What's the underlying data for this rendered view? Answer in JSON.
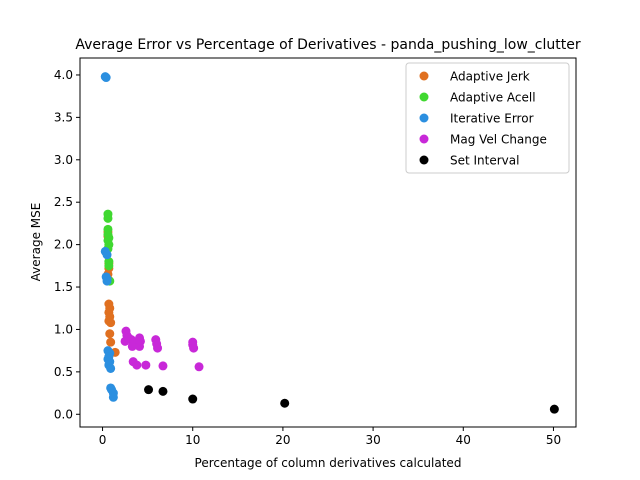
{
  "chart_data": {
    "type": "scatter",
    "title": "Average Error vs Percentage of Derivatives - panda_pushing_low_clutter",
    "xlabel": "Percentage of column derivatives calculated",
    "ylabel": "Average MSE",
    "xlim": [
      -2.5,
      52.5
    ],
    "ylim": [
      -0.15,
      4.2
    ],
    "xticks": [
      0,
      10,
      20,
      30,
      40,
      50
    ],
    "xtick_labels": [
      "0",
      "10",
      "20",
      "30",
      "40",
      "50"
    ],
    "yticks": [
      0.0,
      0.5,
      1.0,
      1.5,
      2.0,
      2.5,
      3.0,
      3.5,
      4.0
    ],
    "ytick_labels": [
      "0.0",
      "0.5",
      "1.0",
      "1.5",
      "2.0",
      "2.5",
      "3.0",
      "3.5",
      "4.0"
    ],
    "grid": false,
    "legend_position": "top-right",
    "series": [
      {
        "name": "Adaptive Jerk",
        "color": "#e07020",
        "points": [
          [
            0.6,
            2.15
          ],
          [
            0.6,
            2.1
          ],
          [
            0.7,
            1.78
          ],
          [
            0.7,
            1.72
          ],
          [
            0.6,
            1.65
          ],
          [
            0.7,
            1.58
          ],
          [
            0.7,
            1.3
          ],
          [
            0.8,
            1.25
          ],
          [
            0.7,
            1.2
          ],
          [
            0.8,
            1.15
          ],
          [
            0.7,
            1.1
          ],
          [
            0.9,
            1.08
          ],
          [
            0.8,
            0.95
          ],
          [
            0.9,
            0.85
          ],
          [
            1.4,
            0.73
          ]
        ]
      },
      {
        "name": "Adaptive Acell",
        "color": "#40d830",
        "points": [
          [
            0.6,
            2.36
          ],
          [
            0.6,
            2.31
          ],
          [
            0.6,
            2.18
          ],
          [
            0.6,
            2.12
          ],
          [
            0.7,
            2.08
          ],
          [
            0.6,
            2.05
          ],
          [
            0.7,
            2.0
          ],
          [
            0.6,
            1.95
          ],
          [
            0.7,
            1.8
          ],
          [
            0.7,
            1.75
          ],
          [
            0.8,
            1.57
          ]
        ]
      },
      {
        "name": "Iterative Error",
        "color": "#2b8fe0",
        "points": [
          [
            0.3,
            3.98
          ],
          [
            0.4,
            3.97
          ],
          [
            0.3,
            1.92
          ],
          [
            0.5,
            1.88
          ],
          [
            0.4,
            1.62
          ],
          [
            0.5,
            1.6
          ],
          [
            0.5,
            1.57
          ],
          [
            0.6,
            0.75
          ],
          [
            0.8,
            0.72
          ],
          [
            0.7,
            0.68
          ],
          [
            0.6,
            0.65
          ],
          [
            0.8,
            0.62
          ],
          [
            0.7,
            0.58
          ],
          [
            0.9,
            0.54
          ],
          [
            0.9,
            0.31
          ],
          [
            1.0,
            0.29
          ],
          [
            1.2,
            0.25
          ],
          [
            1.2,
            0.2
          ]
        ]
      },
      {
        "name": "Mag Vel Change",
        "color": "#c828d8",
        "points": [
          [
            2.6,
            0.98
          ],
          [
            2.7,
            0.93
          ],
          [
            2.9,
            0.9
          ],
          [
            3.2,
            0.88
          ],
          [
            2.5,
            0.86
          ],
          [
            3.5,
            0.85
          ],
          [
            3.8,
            0.83
          ],
          [
            4.1,
            0.9
          ],
          [
            4.2,
            0.86
          ],
          [
            3.3,
            0.8
          ],
          [
            4.1,
            0.8
          ],
          [
            5.9,
            0.88
          ],
          [
            6.0,
            0.83
          ],
          [
            6.1,
            0.78
          ],
          [
            3.4,
            0.62
          ],
          [
            3.8,
            0.58
          ],
          [
            4.8,
            0.58
          ],
          [
            6.7,
            0.57
          ],
          [
            10.0,
            0.85
          ],
          [
            10.0,
            0.82
          ],
          [
            10.1,
            0.78
          ],
          [
            10.7,
            0.56
          ]
        ]
      },
      {
        "name": "Set Interval",
        "color": "#000000",
        "points": [
          [
            5.1,
            0.29
          ],
          [
            6.7,
            0.27
          ],
          [
            10.0,
            0.18
          ],
          [
            20.2,
            0.13
          ],
          [
            50.1,
            0.06
          ]
        ]
      }
    ]
  }
}
